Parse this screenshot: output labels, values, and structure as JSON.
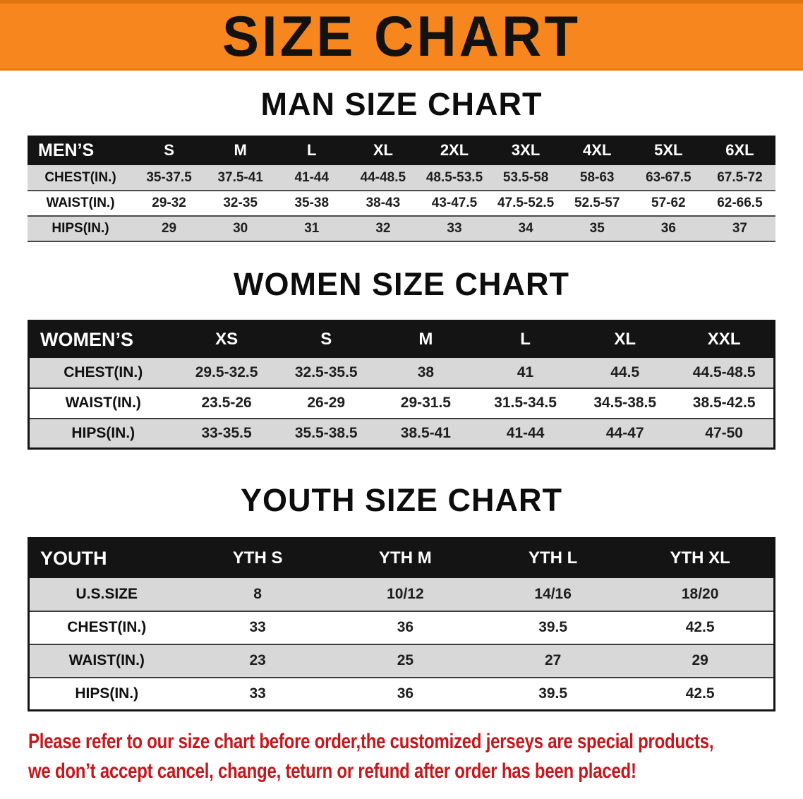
{
  "banner": {
    "title": "SIZE CHART"
  },
  "sections": [
    {
      "heading": "MAN SIZE CHART",
      "table": {
        "header": [
          "MEN’S",
          "S",
          "M",
          "L",
          "XL",
          "2XL",
          "3XL",
          "4XL",
          "5XL",
          "6XL"
        ],
        "rows": [
          [
            "CHEST(IN.)",
            "35-37.5",
            "37.5-41",
            "41-44",
            "44-48.5",
            "48.5-53.5",
            "53.5-58",
            "58-63",
            "63-67.5",
            "67.5-72"
          ],
          [
            "WAIST(IN.)",
            "29-32",
            "32-35",
            "35-38",
            "38-43",
            "43-47.5",
            "47.5-52.5",
            "52.5-57",
            "57-62",
            "62-66.5"
          ],
          [
            "HIPS(IN.)",
            "29",
            "30",
            "31",
            "32",
            "33",
            "34",
            "35",
            "36",
            "37"
          ]
        ]
      }
    },
    {
      "heading": "WOMEN SIZE CHART",
      "table": {
        "header": [
          "WOMEN’S",
          "XS",
          "S",
          "M",
          "L",
          "XL",
          "XXL"
        ],
        "rows": [
          [
            "CHEST(IN.)",
            "29.5-32.5",
            "32.5-35.5",
            "38",
            "41",
            "44.5",
            "44.5-48.5"
          ],
          [
            "WAIST(IN.)",
            "23.5-26",
            "26-29",
            "29-31.5",
            "31.5-34.5",
            "34.5-38.5",
            "38.5-42.5"
          ],
          [
            "HIPS(IN.)",
            "33-35.5",
            "35.5-38.5",
            "38.5-41",
            "41-44",
            "44-47",
            "47-50"
          ]
        ]
      }
    },
    {
      "heading": "YOUTH SIZE CHART",
      "table": {
        "header": [
          "YOUTH",
          "YTH S",
          "YTH M",
          "YTH L",
          "YTH XL"
        ],
        "rows": [
          [
            "U.S.SIZE",
            "8",
            "10/12",
            "14/16",
            "18/20"
          ],
          [
            "CHEST(IN.)",
            "33",
            "36",
            "39.5",
            "42.5"
          ],
          [
            "WAIST(IN.)",
            "23",
            "25",
            "27",
            "29"
          ],
          [
            "HIPS(IN.)",
            "33",
            "36",
            "39.5",
            "42.5"
          ]
        ]
      }
    }
  ],
  "footer": {
    "line1": "Please refer to our size chart before order,the customized jerseys are special products,",
    "line2": "we don’t accept cancel, change, teturn or refund after order has been placed!",
    "text_color": "#c5171c"
  },
  "colors": {
    "banner_bg": "#f6861d",
    "table_header_bg": "#141414",
    "stripe_row_bg": "#d8d8d8",
    "heading_text": "#0d0d0d"
  }
}
